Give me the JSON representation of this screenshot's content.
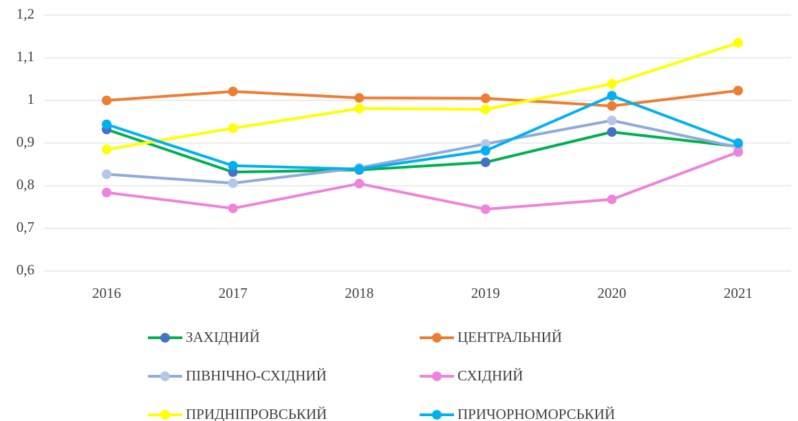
{
  "chart_data": {
    "type": "line",
    "categories": [
      "2016",
      "2017",
      "2018",
      "2019",
      "2020",
      "2021"
    ],
    "series": [
      {
        "name": "ЗАХІДНИЙ",
        "color": "#00b050",
        "marker_color": "#4472c4",
        "values": [
          0.932,
          0.832,
          0.837,
          0.855,
          0.926,
          0.892
        ]
      },
      {
        "name": "ЦЕНТРАЛЬНИЙ",
        "color": "#ed7d31",
        "marker_color": "#ed7d31",
        "values": [
          1.0,
          1.021,
          1.006,
          1.005,
          0.987,
          1.023
        ]
      },
      {
        "name": "ПІВНІЧНО-СХІДНИЙ",
        "color": "#8faadc",
        "marker_color": "#b4c7e7",
        "values": [
          0.827,
          0.806,
          0.842,
          0.898,
          0.953,
          0.89
        ]
      },
      {
        "name": "СХІДНИЙ",
        "color": "#ee82dc",
        "marker_color": "#ee82dc",
        "values": [
          0.784,
          0.747,
          0.805,
          0.745,
          0.768,
          0.879
        ]
      },
      {
        "name": "ПРИДНІПРОВСЬКИЙ",
        "color": "#ffff00",
        "marker_color": "#ffff00",
        "values": [
          0.885,
          0.935,
          0.981,
          0.979,
          1.039,
          1.135
        ]
      },
      {
        "name": "ПРИЧОРНОМОРСЬКИЙ",
        "color": "#00b0f0",
        "marker_color": "#00b0f0",
        "values": [
          0.944,
          0.847,
          0.839,
          0.882,
          1.011,
          0.9
        ]
      }
    ],
    "ylim": [
      0.6,
      1.2
    ],
    "yticks": [
      {
        "value": 0.6,
        "label": "0,6"
      },
      {
        "value": 0.7,
        "label": "0,7"
      },
      {
        "value": 0.8,
        "label": "0,8"
      },
      {
        "value": 0.9,
        "label": "0,9"
      },
      1,
      {
        "value": 1.1,
        "label": "1,1"
      },
      {
        "value": 1.2,
        "label": "1,2"
      }
    ],
    "grid": true,
    "legend": "bottom"
  }
}
